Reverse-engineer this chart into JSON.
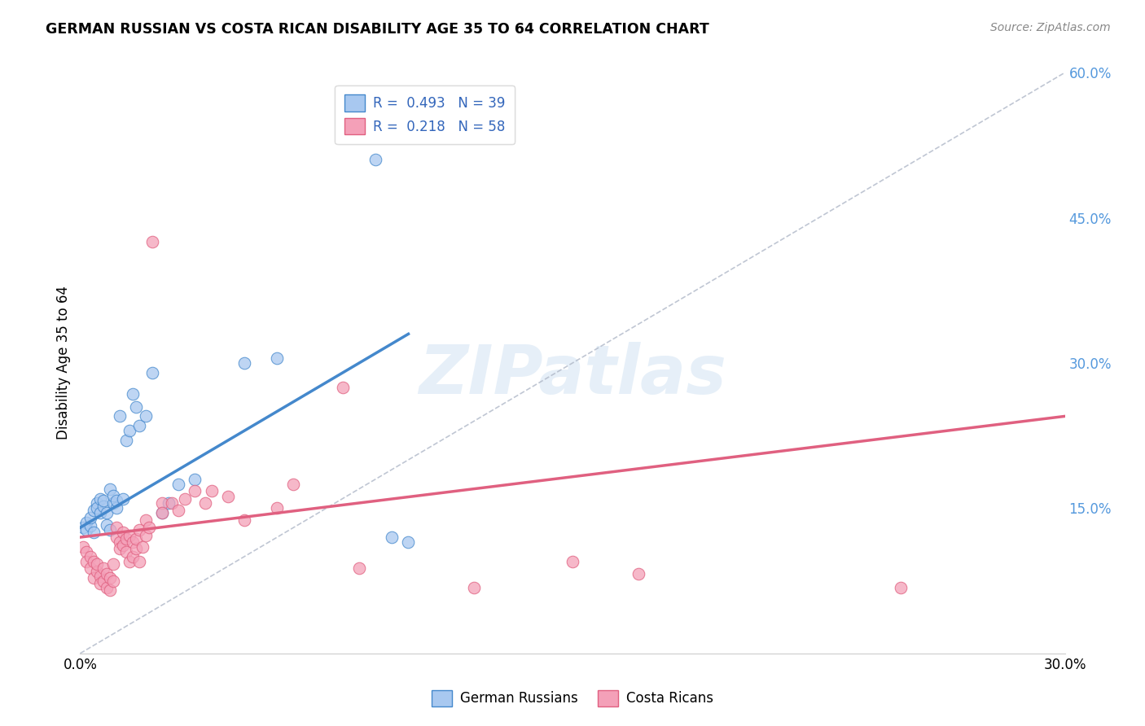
{
  "title": "GERMAN RUSSIAN VS COSTA RICAN DISABILITY AGE 35 TO 64 CORRELATION CHART",
  "source": "Source: ZipAtlas.com",
  "ylabel": "Disability Age 35 to 64",
  "x_min": 0.0,
  "x_max": 0.3,
  "y_min": 0.0,
  "y_max": 0.6,
  "y_ticks_right": [
    0.0,
    0.15,
    0.3,
    0.45,
    0.6
  ],
  "y_tick_labels_right": [
    "",
    "15.0%",
    "30.0%",
    "45.0%",
    "60.0%"
  ],
  "color_blue": "#a8c8f0",
  "color_pink": "#f4a0b8",
  "color_line_blue": "#4488cc",
  "color_line_pink": "#e06080",
  "color_diag": "#b0b8c8",
  "watermark": "ZIPatlas",
  "german_russians": [
    [
      0.001,
      0.13
    ],
    [
      0.002,
      0.135
    ],
    [
      0.002,
      0.128
    ],
    [
      0.003,
      0.132
    ],
    [
      0.003,
      0.14
    ],
    [
      0.004,
      0.125
    ],
    [
      0.004,
      0.148
    ],
    [
      0.005,
      0.155
    ],
    [
      0.005,
      0.15
    ],
    [
      0.006,
      0.145
    ],
    [
      0.006,
      0.16
    ],
    [
      0.007,
      0.152
    ],
    [
      0.007,
      0.158
    ],
    [
      0.008,
      0.133
    ],
    [
      0.008,
      0.145
    ],
    [
      0.009,
      0.128
    ],
    [
      0.009,
      0.17
    ],
    [
      0.01,
      0.155
    ],
    [
      0.01,
      0.163
    ],
    [
      0.011,
      0.15
    ],
    [
      0.011,
      0.158
    ],
    [
      0.012,
      0.245
    ],
    [
      0.013,
      0.16
    ],
    [
      0.014,
      0.22
    ],
    [
      0.015,
      0.23
    ],
    [
      0.016,
      0.268
    ],
    [
      0.017,
      0.255
    ],
    [
      0.018,
      0.235
    ],
    [
      0.02,
      0.245
    ],
    [
      0.022,
      0.29
    ],
    [
      0.025,
      0.145
    ],
    [
      0.027,
      0.155
    ],
    [
      0.03,
      0.175
    ],
    [
      0.035,
      0.18
    ],
    [
      0.05,
      0.3
    ],
    [
      0.06,
      0.305
    ],
    [
      0.09,
      0.51
    ],
    [
      0.095,
      0.12
    ],
    [
      0.1,
      0.115
    ]
  ],
  "costa_ricans": [
    [
      0.001,
      0.11
    ],
    [
      0.002,
      0.105
    ],
    [
      0.002,
      0.095
    ],
    [
      0.003,
      0.1
    ],
    [
      0.003,
      0.088
    ],
    [
      0.004,
      0.095
    ],
    [
      0.004,
      0.078
    ],
    [
      0.005,
      0.085
    ],
    [
      0.005,
      0.092
    ],
    [
      0.006,
      0.08
    ],
    [
      0.006,
      0.072
    ],
    [
      0.007,
      0.088
    ],
    [
      0.007,
      0.075
    ],
    [
      0.008,
      0.082
    ],
    [
      0.008,
      0.068
    ],
    [
      0.009,
      0.078
    ],
    [
      0.009,
      0.065
    ],
    [
      0.01,
      0.092
    ],
    [
      0.01,
      0.075
    ],
    [
      0.011,
      0.13
    ],
    [
      0.011,
      0.12
    ],
    [
      0.012,
      0.115
    ],
    [
      0.012,
      0.108
    ],
    [
      0.013,
      0.125
    ],
    [
      0.013,
      0.112
    ],
    [
      0.014,
      0.118
    ],
    [
      0.014,
      0.105
    ],
    [
      0.015,
      0.122
    ],
    [
      0.015,
      0.095
    ],
    [
      0.016,
      0.115
    ],
    [
      0.016,
      0.1
    ],
    [
      0.017,
      0.108
    ],
    [
      0.017,
      0.118
    ],
    [
      0.018,
      0.128
    ],
    [
      0.018,
      0.095
    ],
    [
      0.019,
      0.11
    ],
    [
      0.02,
      0.138
    ],
    [
      0.02,
      0.122
    ],
    [
      0.021,
      0.13
    ],
    [
      0.022,
      0.425
    ],
    [
      0.025,
      0.155
    ],
    [
      0.025,
      0.145
    ],
    [
      0.028,
      0.155
    ],
    [
      0.03,
      0.148
    ],
    [
      0.032,
      0.16
    ],
    [
      0.035,
      0.168
    ],
    [
      0.038,
      0.155
    ],
    [
      0.04,
      0.168
    ],
    [
      0.045,
      0.162
    ],
    [
      0.05,
      0.138
    ],
    [
      0.06,
      0.15
    ],
    [
      0.065,
      0.175
    ],
    [
      0.08,
      0.275
    ],
    [
      0.085,
      0.088
    ],
    [
      0.12,
      0.068
    ],
    [
      0.25,
      0.068
    ],
    [
      0.15,
      0.095
    ],
    [
      0.17,
      0.082
    ]
  ]
}
